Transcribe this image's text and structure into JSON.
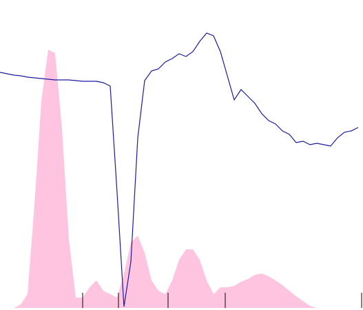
{
  "chart_data": {
    "type": "line",
    "x": [
      0,
      10,
      20,
      30,
      40,
      50,
      60,
      70,
      80,
      90,
      100,
      110,
      120,
      130,
      140,
      150,
      160,
      170,
      180,
      190,
      200,
      210,
      220,
      230,
      240,
      250,
      260,
      270,
      280,
      290,
      300,
      310,
      320,
      330,
      340,
      350,
      360,
      370,
      380,
      390,
      400,
      410,
      420,
      430,
      440,
      450,
      460,
      470,
      480,
      490,
      500,
      510,
      520
    ],
    "series": [
      {
        "kind": "area",
        "color": "#ffc4e0",
        "values": [
          0,
          0,
          0,
          5,
          20,
          150,
          300,
          375,
          370,
          260,
          100,
          15,
          15,
          30,
          40,
          25,
          20,
          15,
          50,
          95,
          105,
          80,
          40,
          25,
          20,
          40,
          70,
          85,
          85,
          70,
          40,
          20,
          30,
          30,
          32,
          38,
          42,
          48,
          50,
          46,
          40,
          33,
          25,
          17,
          10,
          3,
          0,
          0,
          0,
          0,
          0,
          0,
          0
        ]
      },
      {
        "kind": "line",
        "color": "#1a1aa0",
        "values": [
          342,
          340,
          338,
          337,
          335,
          334,
          333,
          332,
          331,
          331,
          331,
          330,
          329,
          329,
          329,
          327,
          322,
          167,
          2,
          67,
          247,
          330,
          344,
          347,
          357,
          362,
          369,
          365,
          372,
          387,
          399,
          395,
          372,
          337,
          302,
          317,
          307,
          297,
          282,
          272,
          267,
          257,
          252,
          240,
          242,
          237,
          239,
          237,
          235,
          247,
          255,
          257,
          262
        ]
      }
    ],
    "xlim": [
      0,
      527
    ],
    "ylim": [
      0,
      447
    ],
    "xticks": [
      120,
      172,
      244,
      327,
      525
    ]
  }
}
